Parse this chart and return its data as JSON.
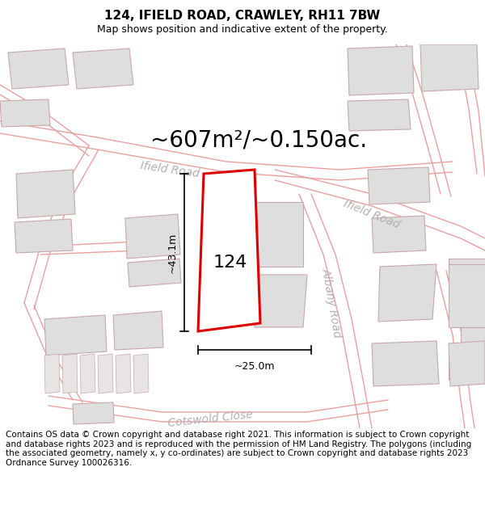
{
  "title": "124, IFIELD ROAD, CRAWLEY, RH11 7BW",
  "subtitle": "Map shows position and indicative extent of the property.",
  "area_text": "~607m²/~0.150ac.",
  "label_124": "124",
  "dim_height": "~43.1m",
  "dim_width": "~25.0m",
  "footer": "Contains OS data © Crown copyright and database right 2021. This information is subject to Crown copyright and database rights 2023 and is reproduced with the permission of HM Land Registry. The polygons (including the associated geometry, namely x, y co-ordinates) are subject to Crown copyright and database rights 2023 Ordnance Survey 100026316.",
  "map_bg": "#f7f4f4",
  "red_poly_color": "#dd0000",
  "road_outline_color": "#e8a0a0",
  "building_fill": "#dedede",
  "building_edge": "#c8a8a8",
  "street_label_color": "#b0b0b0",
  "title_fontsize": 11,
  "subtitle_fontsize": 9,
  "area_fontsize": 20,
  "footer_fontsize": 7.5,
  "dim_fontsize": 9,
  "label_fontsize": 16,
  "street_fontsize": 10
}
